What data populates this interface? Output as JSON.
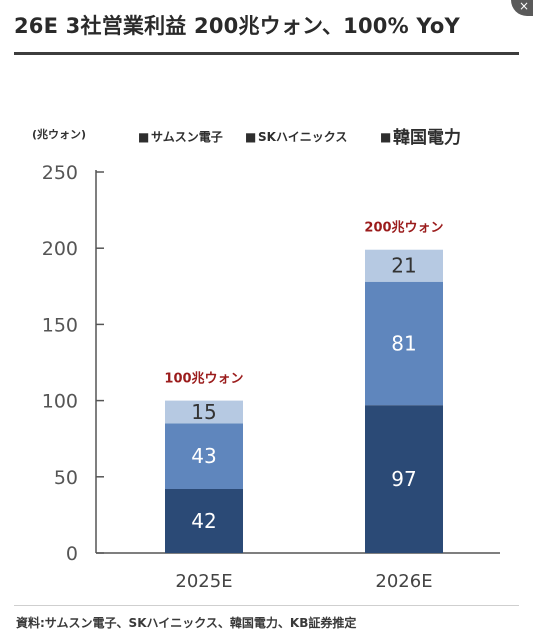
{
  "title": "26E 3社営業利益 200兆ウォン、100% YoY",
  "corner_glyph": "×",
  "source": "資料:サムスン電子、SKハイニックス、韓国電力、KB証券推定",
  "chart_data": {
    "type": "bar",
    "stacked": true,
    "unit_label": "(兆ウォン)",
    "categories": [
      "2025E",
      "2026E"
    ],
    "series": [
      {
        "name": "サムスン電子",
        "values": [
          42,
          97
        ],
        "color": "#2b4a76"
      },
      {
        "name": "SKハイニックス",
        "values": [
          43,
          81
        ],
        "color": "#5f86bd"
      },
      {
        "name": "韓国電力",
        "values": [
          15,
          21
        ],
        "color": "#b6c9e2"
      }
    ],
    "legend_markers": [
      "■",
      "■",
      "■"
    ],
    "totals": [
      "100兆ウォン",
      "200兆ウォン"
    ],
    "ylim": [
      0,
      250
    ],
    "yticks": [
      0,
      50,
      100,
      150,
      200,
      250
    ],
    "grid": false,
    "legend_position": "top"
  }
}
